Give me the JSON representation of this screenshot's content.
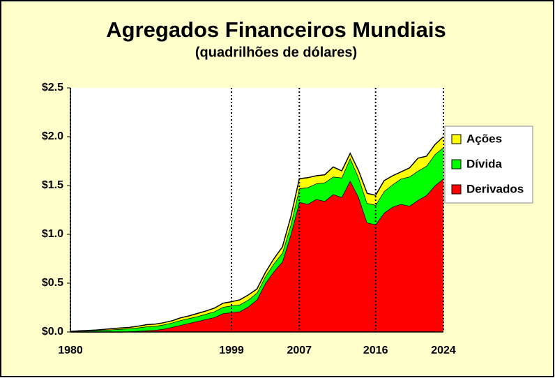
{
  "chart_data": {
    "type": "stacked_area",
    "title": "Agregados Financeiros Mundiais",
    "subtitle": "(quadrilhões de dólares)",
    "x": [
      1980,
      1981,
      1982,
      1983,
      1984,
      1985,
      1986,
      1987,
      1988,
      1989,
      1990,
      1991,
      1992,
      1993,
      1994,
      1995,
      1996,
      1997,
      1998,
      1999,
      2000,
      2001,
      2002,
      2003,
      2004,
      2005,
      2006,
      2007,
      2008,
      2009,
      2010,
      2011,
      2012,
      2013,
      2014,
      2015,
      2016,
      2017,
      2018,
      2019,
      2020,
      2021,
      2022,
      2023,
      2024
    ],
    "series": [
      {
        "name": "Derivados",
        "color": "#ff0000",
        "values": [
          0,
          0,
          0,
          0,
          0,
          0,
          0,
          0.005,
          0.01,
          0.015,
          0.02,
          0.03,
          0.05,
          0.07,
          0.09,
          0.11,
          0.13,
          0.15,
          0.19,
          0.2,
          0.21,
          0.26,
          0.33,
          0.5,
          0.62,
          0.72,
          1.0,
          1.33,
          1.31,
          1.36,
          1.34,
          1.41,
          1.38,
          1.55,
          1.38,
          1.12,
          1.1,
          1.22,
          1.28,
          1.31,
          1.29,
          1.35,
          1.4,
          1.5,
          1.57
        ]
      },
      {
        "name": "Dívida",
        "color": "#00ff00",
        "values": [
          0.005,
          0.01,
          0.012,
          0.015,
          0.02,
          0.025,
          0.03,
          0.03,
          0.035,
          0.04,
          0.04,
          0.045,
          0.045,
          0.05,
          0.05,
          0.05,
          0.055,
          0.06,
          0.065,
          0.07,
          0.07,
          0.07,
          0.07,
          0.07,
          0.08,
          0.09,
          0.1,
          0.14,
          0.17,
          0.16,
          0.19,
          0.18,
          0.2,
          0.23,
          0.2,
          0.2,
          0.2,
          0.22,
          0.23,
          0.26,
          0.3,
          0.3,
          0.3,
          0.32,
          0.32
        ]
      },
      {
        "name": "Ações",
        "color": "#ffff00",
        "values": [
          0,
          0.002,
          0.003,
          0.005,
          0.007,
          0.01,
          0.012,
          0.012,
          0.015,
          0.02,
          0.02,
          0.02,
          0.02,
          0.025,
          0.025,
          0.03,
          0.03,
          0.035,
          0.04,
          0.04,
          0.05,
          0.05,
          0.04,
          0.04,
          0.05,
          0.06,
          0.08,
          0.1,
          0.1,
          0.08,
          0.08,
          0.1,
          0.07,
          0.05,
          0.07,
          0.1,
          0.1,
          0.11,
          0.09,
          0.07,
          0.09,
          0.13,
          0.1,
          0.1,
          0.11
        ]
      }
    ],
    "xlim": [
      1980,
      2024
    ],
    "xticks": [
      1980,
      1999,
      2007,
      2016,
      2024
    ],
    "ylim": [
      0,
      2.5
    ],
    "yticks": [
      {
        "value": 0,
        "label": "$0.0"
      },
      {
        "value": 0.5,
        "label": "$0.5"
      },
      {
        "value": 1,
        "label": "$1.0"
      },
      {
        "value": 1.5,
        "label": "$1.5"
      },
      {
        "value": 2,
        "label": "$2.0"
      },
      {
        "value": 2.5,
        "label": "$2.5"
      }
    ],
    "xgrid": "dotted",
    "legend": "right"
  }
}
